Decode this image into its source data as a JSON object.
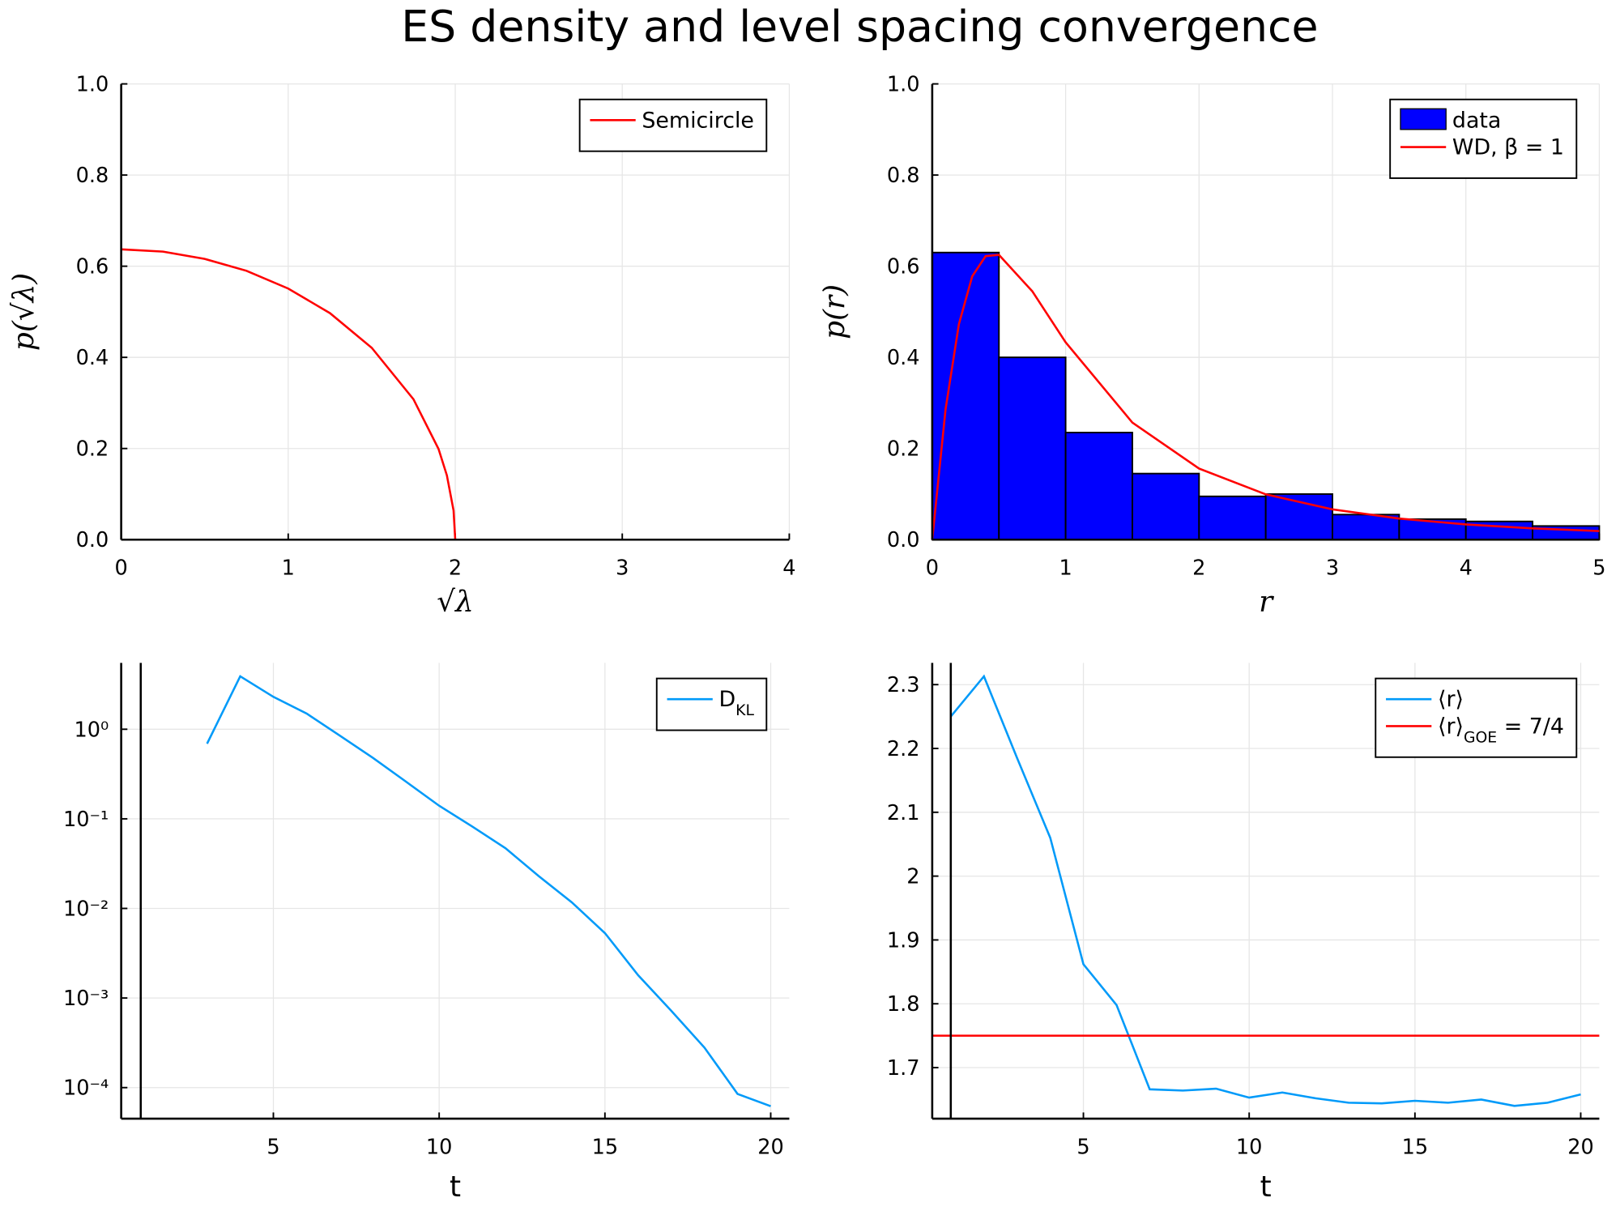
{
  "title": "ES density and level spacing convergence",
  "chart_data": [
    {
      "type": "line",
      "xlabel": "√λ",
      "ylabel": "p(√λ)",
      "xlim": [
        0,
        4
      ],
      "ylim": [
        0,
        1
      ],
      "xticks": [
        0,
        1,
        2,
        3,
        4
      ],
      "yticks": [
        {
          "value": 0,
          "label": "0.0"
        },
        {
          "value": 0.2,
          "label": "0.2"
        },
        {
          "value": 0.4,
          "label": "0.4"
        },
        {
          "value": 0.6,
          "label": "0.6"
        },
        {
          "value": 0.8,
          "label": "0.8"
        },
        {
          "value": 1,
          "label": "1.0"
        }
      ],
      "grid": true,
      "legend": "top-right",
      "series": [
        {
          "name": "Semicircle",
          "color": "#ff0000",
          "kind": "line",
          "x": [
            0,
            0.25,
            0.5,
            0.75,
            1.0,
            1.25,
            1.5,
            1.75,
            1.9,
            1.95,
            1.99,
            2.0
          ],
          "values": [
            0.637,
            0.632,
            0.616,
            0.59,
            0.551,
            0.497,
            0.421,
            0.308,
            0.199,
            0.141,
            0.064,
            0
          ]
        }
      ]
    },
    {
      "type": "histogram",
      "xlabel": "r",
      "ylabel": "p(r)",
      "xlim": [
        0,
        5
      ],
      "ylim": [
        0,
        1
      ],
      "xticks": [
        0,
        1,
        2,
        3,
        4,
        5
      ],
      "yticks": [
        {
          "value": 0,
          "label": "0.0"
        },
        {
          "value": 0.2,
          "label": "0.2"
        },
        {
          "value": 0.4,
          "label": "0.4"
        },
        {
          "value": 0.6,
          "label": "0.6"
        },
        {
          "value": 0.8,
          "label": "0.8"
        },
        {
          "value": 1,
          "label": "1.0"
        }
      ],
      "grid": true,
      "legend": "top-right",
      "series": [
        {
          "name": "data",
          "color": "#0000ff",
          "kind": "bar",
          "bins": [
            0,
            0.5,
            1,
            1.5,
            2,
            2.5,
            3,
            3.5,
            4,
            4.5,
            5
          ],
          "values": [
            0.63,
            0.4,
            0.235,
            0.145,
            0.095,
            0.1,
            0.055,
            0.045,
            0.04,
            0.03
          ]
        },
        {
          "name": "WD, β = 1",
          "color": "#ff0000",
          "kind": "line",
          "x": [
            0,
            0.1,
            0.2,
            0.3,
            0.4,
            0.5,
            0.75,
            1,
            1.5,
            2,
            2.5,
            3,
            3.5,
            4,
            4.5,
            5
          ],
          "values": [
            0,
            0.286,
            0.473,
            0.578,
            0.622,
            0.625,
            0.545,
            0.433,
            0.257,
            0.156,
            0.0995,
            0.0665,
            0.0463,
            0.0334,
            0.0248,
            0.0189
          ]
        }
      ]
    },
    {
      "type": "line",
      "xlabel": "t",
      "log_y": true,
      "xlim": [
        0.41,
        20.56
      ],
      "ylim": [
        4.5e-05,
        5.5
      ],
      "xticks": [
        5,
        10,
        15,
        20
      ],
      "yticks": [
        {
          "value": 1,
          "label": "10⁰"
        },
        {
          "value": 0.1,
          "label": "10⁻¹"
        },
        {
          "value": 0.01,
          "label": "10⁻²"
        },
        {
          "value": 0.001,
          "label": "10⁻³"
        },
        {
          "value": 0.0001,
          "label": "10⁻⁴"
        }
      ],
      "grid": true,
      "legend": "top-right",
      "vline": 1,
      "series": [
        {
          "name": "D_KL",
          "color": "#009af9",
          "kind": "line",
          "x": [
            3,
            4,
            5,
            6,
            7,
            8,
            9,
            10,
            11,
            12,
            13,
            14,
            15,
            16,
            17,
            18,
            19,
            20
          ],
          "values": [
            0.69,
            3.9,
            2.3,
            1.5,
            0.85,
            0.48,
            0.26,
            0.14,
            0.082,
            0.047,
            0.023,
            0.0117,
            0.0053,
            0.0018,
            0.00072,
            0.00028,
            8.5e-05,
            6.2e-05
          ]
        }
      ]
    },
    {
      "type": "line",
      "xlabel": "t",
      "xlim": [
        0.44,
        20.56
      ],
      "ylim": [
        1.62,
        2.334
      ],
      "xticks": [
        5,
        10,
        15,
        20
      ],
      "yticks": [
        1.7,
        1.8,
        1.9,
        2.0,
        2.1,
        2.2,
        2.3
      ],
      "grid": true,
      "legend": "top-right",
      "vline": 1,
      "series": [
        {
          "name": "⟨r⟩",
          "color": "#009af9",
          "kind": "line",
          "x": [
            1,
            2,
            3,
            4,
            5,
            6,
            7,
            8,
            9,
            10,
            11,
            12,
            13,
            14,
            15,
            16,
            17,
            18,
            19,
            20
          ],
          "values": [
            2.25,
            2.313,
            2.185,
            2.06,
            1.862,
            1.798,
            1.666,
            1.664,
            1.667,
            1.653,
            1.661,
            1.652,
            1.645,
            1.644,
            1.648,
            1.645,
            1.65,
            1.64,
            1.645,
            1.658
          ]
        },
        {
          "name": "⟨r⟩_GOE = 7/4",
          "color": "#ff0000",
          "kind": "hline",
          "values": [
            1.75
          ]
        }
      ]
    }
  ]
}
